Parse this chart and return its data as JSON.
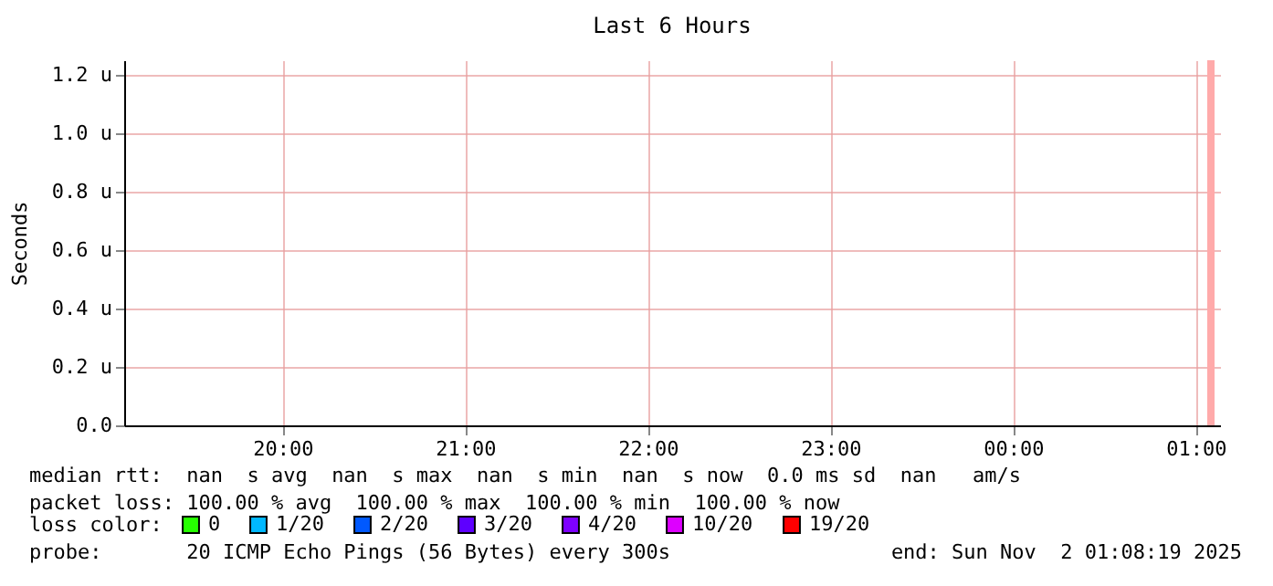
{
  "chart_data": {
    "type": "line",
    "title": "Last 6 Hours",
    "ylabel": "Seconds",
    "x": [
      "2025-11-02T01:05"
    ],
    "xlim": [
      "2025-11-01T19:08",
      "2025-11-02T01:08"
    ],
    "xticks": [
      {
        "value": "2025-11-01T20:00",
        "label": "20:00"
      },
      {
        "value": "2025-11-01T21:00",
        "label": "21:00"
      },
      {
        "value": "2025-11-01T22:00",
        "label": "22:00"
      },
      {
        "value": "2025-11-01T23:00",
        "label": "23:00"
      },
      {
        "value": "2025-11-02T00:00",
        "label": "00:00"
      },
      {
        "value": "2025-11-02T01:00",
        "label": "01:00"
      }
    ],
    "ylim": [
      0,
      1.25
    ],
    "yticks": [
      {
        "value": 0,
        "label": "0.0"
      },
      {
        "value": 0.2,
        "label": "0.2 u"
      },
      {
        "value": 0.4,
        "label": "0.4 u"
      },
      {
        "value": 0.6,
        "label": "0.6 u"
      },
      {
        "value": 0.8,
        "label": "0.8 u"
      },
      {
        "value": 1.0,
        "label": "1.0 u"
      },
      {
        "value": 1.2,
        "label": "1.2 u"
      }
    ],
    "grid": true,
    "legend": "bottom left",
    "legend_title": "loss color:",
    "series": [
      {
        "type": "bar",
        "color": "#ffaaaa",
        "values": [
          1.25
        ]
      },
      {
        "name": "0",
        "color": "#26ff00",
        "values": [
          null
        ]
      },
      {
        "name": "1/20",
        "color": "#00b8ff",
        "values": [
          null
        ]
      },
      {
        "name": "2/20",
        "color": "#0059ff",
        "values": [
          null
        ]
      },
      {
        "name": "3/20",
        "color": "#5e00ff",
        "values": [
          null
        ]
      },
      {
        "name": "4/20",
        "color": "#7e00ff",
        "values": [
          null
        ]
      },
      {
        "name": "10/20",
        "color": "#dd00ff",
        "values": [
          null
        ]
      },
      {
        "name": "19/20",
        "color": "#ff0000",
        "values": [
          null
        ]
      }
    ],
    "annotations": [
      "median rtt:  nan  s avg  nan  s max  nan  s min  nan  s now  0.0 ms sd  nan   am/s",
      "packet loss: 100.00 % avg  100.00 % max  100.00 % min  100.00 % now",
      "probe:       20 ICMP Echo Pings (56 Bytes) every 300s",
      "end: Sun Nov  2 01:08:19 2025"
    ]
  }
}
